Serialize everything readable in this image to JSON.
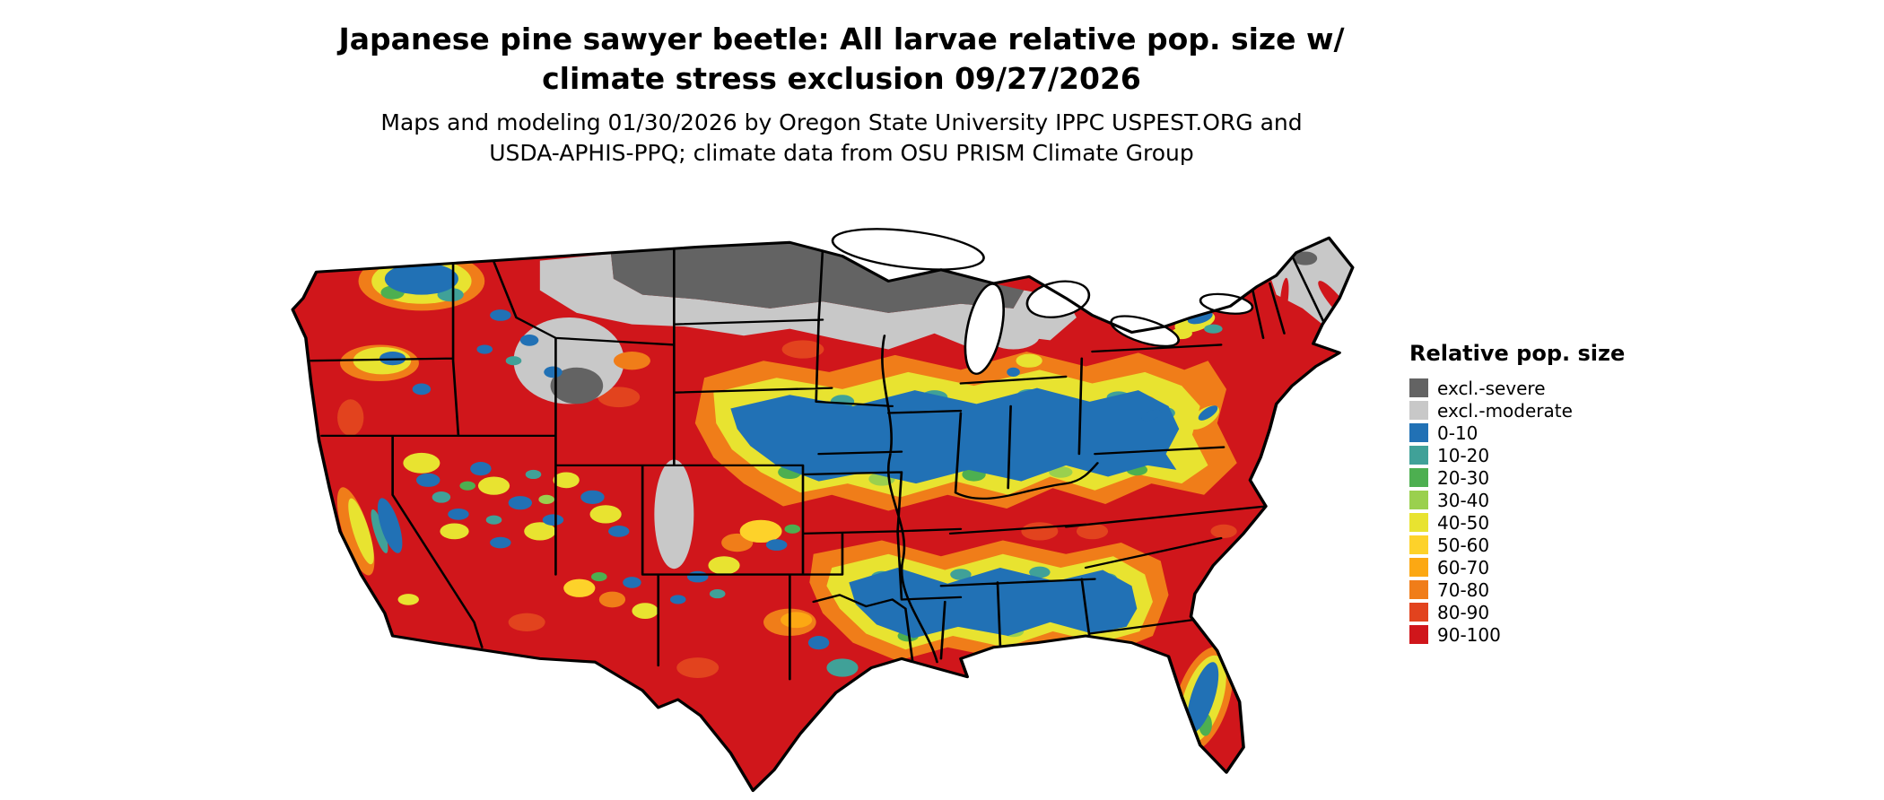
{
  "title": {
    "line1": "Japanese pine sawyer beetle: All larvae relative pop. size w/",
    "line2": "climate stress exclusion 09/27/2026"
  },
  "subtitle": {
    "line1": "Maps and modeling 01/30/2026 by Oregon State University IPPC USPEST.ORG and",
    "line2": "USDA-APHIS-PPQ; climate data from OSU PRISM Climate Group"
  },
  "legend": {
    "title": "Relative pop. size",
    "items": [
      {
        "label": "excl.-severe",
        "color": "#636363"
      },
      {
        "label": "excl.-moderate",
        "color": "#c8c8c8"
      },
      {
        "label": "0-10",
        "color": "#2171b5"
      },
      {
        "label": "10-20",
        "color": "#40a198"
      },
      {
        "label": "20-30",
        "color": "#4daf50"
      },
      {
        "label": "30-40",
        "color": "#9ad04e"
      },
      {
        "label": "40-50",
        "color": "#e8e330"
      },
      {
        "label": "50-60",
        "color": "#fdd22a"
      },
      {
        "label": "60-70",
        "color": "#fca813"
      },
      {
        "label": "70-80",
        "color": "#f07d19"
      },
      {
        "label": "80-90",
        "color": "#e2431e"
      },
      {
        "label": "90-100",
        "color": "#d0161b"
      }
    ]
  }
}
